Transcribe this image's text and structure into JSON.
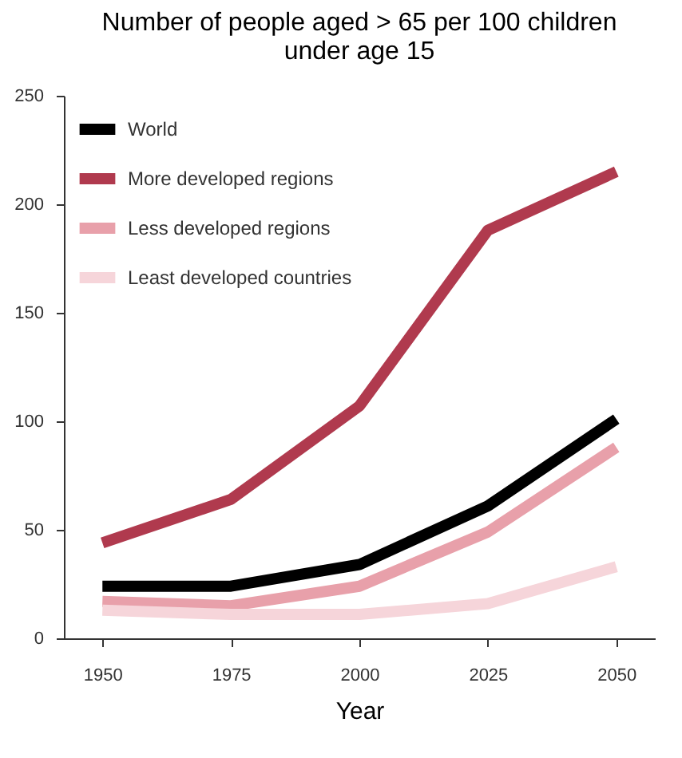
{
  "chart_data": {
    "type": "line",
    "title": [
      "Number of people aged > 65 per 100 children",
      "under age 15"
    ],
    "xlabel": "Year",
    "categories": [
      "1950",
      "1975",
      "2000",
      "2025",
      "2050"
    ],
    "series": [
      {
        "name": "World",
        "color": "#000000",
        "values": [
          24,
          24,
          34,
          61,
          101
        ]
      },
      {
        "name": "More developed regions",
        "color": "#b03a4e",
        "values": [
          44,
          64,
          107,
          188,
          215
        ]
      },
      {
        "name": "Less developed regions",
        "color": "#e8a0aa",
        "values": [
          17,
          15,
          24,
          49,
          88
        ]
      },
      {
        "name": "Least developed countries",
        "color": "#f6d5da",
        "values": [
          13,
          11,
          11,
          16,
          33
        ]
      }
    ],
    "ylim": [
      0,
      250
    ],
    "yticks": [
      0,
      50,
      100,
      150,
      200,
      250
    ],
    "grid": false,
    "legend": "top left",
    "marker": "none",
    "line_style": "solid"
  }
}
